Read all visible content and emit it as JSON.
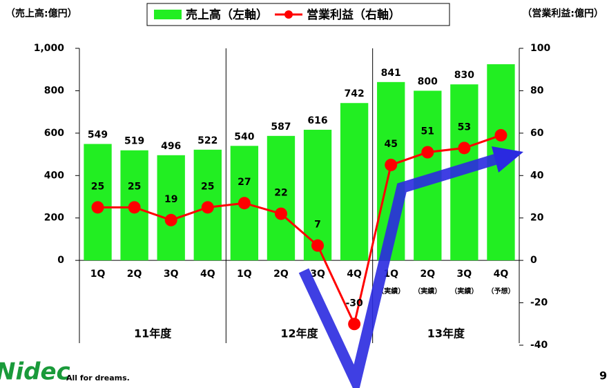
{
  "chart_data": {
    "type": "bar_line",
    "y_label": "（売上高:億円）",
    "y2_label": "（営業利益:億円）",
    "categories": [
      "1Q",
      "2Q",
      "3Q",
      "4Q",
      "1Q",
      "2Q",
      "3Q",
      "4Q",
      "1Q",
      "2Q",
      "3Q",
      "4Q"
    ],
    "category_notes": [
      null,
      null,
      null,
      null,
      null,
      null,
      null,
      null,
      "（実績）",
      "（実績）",
      "（実績）",
      "（予想）"
    ],
    "groups": [
      "11年度",
      "12年度",
      "13年度"
    ],
    "series": [
      {
        "name": "売上高（左軸）",
        "type": "bar",
        "color": "#22ee22",
        "values": [
          549,
          519,
          496,
          522,
          540,
          587,
          616,
          742,
          841,
          800,
          830,
          925
        ],
        "value_labels": [
          "549",
          "519",
          "496",
          "522",
          "540",
          "587",
          "616",
          "742",
          "841",
          "800",
          "830",
          null
        ]
      },
      {
        "name": "営業利益（右軸）",
        "type": "line",
        "axis": "y2",
        "color": "#ff0000",
        "values": [
          25,
          25,
          19,
          25,
          27,
          22,
          7,
          -30,
          45,
          51,
          53,
          59
        ],
        "value_labels": [
          "25",
          "25",
          "19",
          "25",
          "27",
          "22",
          "7",
          "-30",
          "45",
          "51",
          "53",
          null
        ]
      }
    ],
    "ylim": [
      -400,
      1000
    ],
    "yticks": [
      0,
      200,
      400,
      600,
      800,
      {
        "value": 1000,
        "label": "1,000"
      }
    ],
    "y2lim": [
      -40,
      100
    ],
    "y2ticks": [
      -40,
      -20,
      0,
      20,
      40,
      60,
      80,
      100
    ]
  },
  "logo": {
    "brand": "Nidec",
    "tagline": "All for dreams."
  },
  "page_number": "9"
}
